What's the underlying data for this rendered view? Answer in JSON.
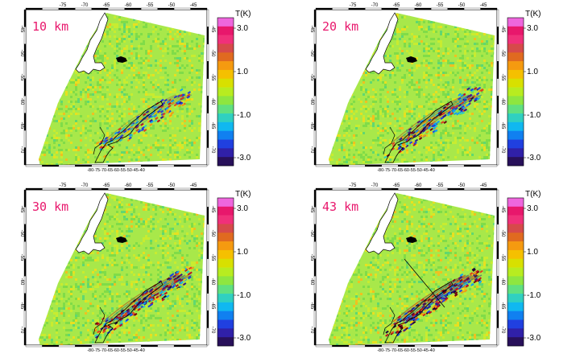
{
  "panels": [
    {
      "altitude_label": "10 km",
      "intensity": 0.55,
      "line_visible": false
    },
    {
      "altitude_label": "20 km",
      "intensity": 0.75,
      "line_visible": false
    },
    {
      "altitude_label": "30 km",
      "intensity": 0.8,
      "line_visible": false
    },
    {
      "altitude_label": "43 km",
      "intensity": 0.9,
      "line_visible": true
    }
  ],
  "top_axis_ticks": [
    "-75",
    "-70",
    "-65",
    "-60",
    "-55",
    "-50",
    "-45"
  ],
  "side_axis_ticks": [
    "-45",
    "-50",
    "-55",
    "-60",
    "-65",
    "-70"
  ],
  "bottom_axis_text": "-80-75-70-65-60-55-50-45-40",
  "colorbar": {
    "title": "T(K)",
    "labels": [
      "3.0",
      "1.0",
      "-1.0",
      "-3.0"
    ],
    "colors": [
      "#ee66dd",
      "#e8176c",
      "#f0307a",
      "#d64a4a",
      "#e06a20",
      "#f59a10",
      "#f5c000",
      "#d8e000",
      "#b8ec20",
      "#8ee640",
      "#60e080",
      "#30d0c0",
      "#10b8f0",
      "#1080f0",
      "#2040e0",
      "#3020a8",
      "#28105a"
    ]
  },
  "map_colors": {
    "background_green": "#a8e84a",
    "positive": [
      "#f5d000",
      "#f59a10",
      "#e04020",
      "#c01020",
      "#700010"
    ],
    "negative": [
      "#30d0c0",
      "#10a0f0",
      "#2040e0",
      "#301890",
      "#180838"
    ]
  }
}
